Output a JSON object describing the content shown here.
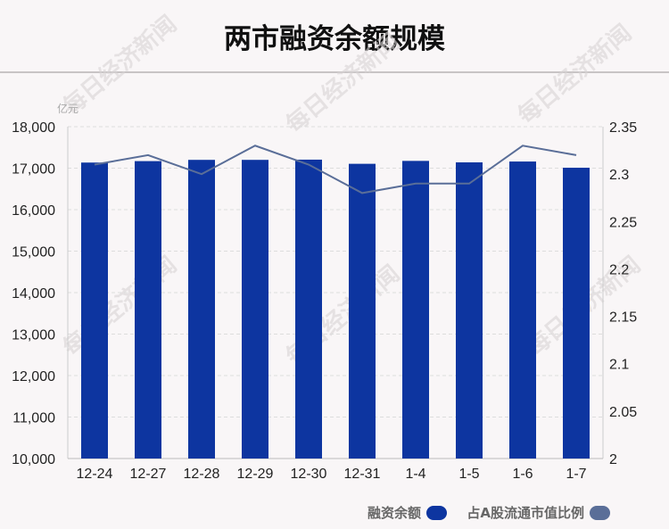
{
  "chart_data": {
    "type": "bar+line",
    "title": "两市融资余额规模",
    "left_unit": "亿元",
    "categories": [
      "12-24",
      "12-27",
      "12-28",
      "12-29",
      "12-30",
      "12-31",
      "1-4",
      "1-5",
      "1-6",
      "1-7"
    ],
    "series": [
      {
        "name": "融资余额",
        "type": "bar",
        "axis": "left",
        "color": "#0d35a0",
        "values": [
          17135,
          17170,
          17200,
          17200,
          17205,
          17105,
          17175,
          17140,
          17160,
          17010
        ]
      },
      {
        "name": "占A股流通市值比例",
        "type": "line",
        "axis": "right",
        "color": "#5a6e98",
        "values": [
          2.31,
          2.32,
          2.3,
          2.33,
          2.31,
          2.28,
          2.29,
          2.29,
          2.33,
          2.32
        ]
      }
    ],
    "left_axis": {
      "min": 10000,
      "max": 18000,
      "ticks": [
        "10,000",
        "11,000",
        "12,000",
        "13,000",
        "14,000",
        "15,000",
        "16,000",
        "17,000",
        "18,000"
      ]
    },
    "right_axis": {
      "min": 2,
      "max": 2.35,
      "ticks": [
        "2",
        "2.05",
        "2.1",
        "2.15",
        "2.2",
        "2.25",
        "2.3",
        "2.35"
      ]
    },
    "grid": true,
    "legend_position": "bottom-right",
    "watermark": "每日经济新闻"
  }
}
